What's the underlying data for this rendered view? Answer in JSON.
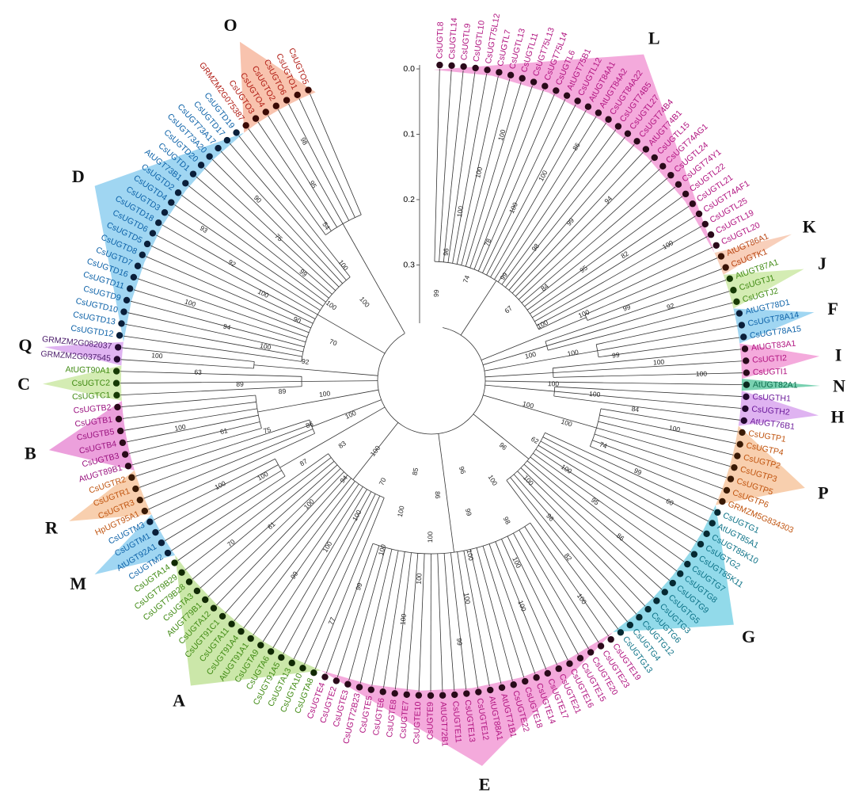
{
  "scale": {
    "ticks": [
      {
        "value": 0,
        "label": "0.0"
      },
      0.1,
      0.2,
      0.3
    ]
  },
  "groups": [
    {
      "name": "L",
      "color": "#f29bd6",
      "text_color": "#b0127f",
      "dot_color": "#2a0a1a",
      "leaves": [
        "CsUGTL8",
        "CsUGTL14",
        "CsUGTL9",
        "CsUGTL10",
        "CsUGT75L12",
        "CsUGTL7",
        "CsUGTL13",
        "CsUGTL11",
        "CsUGT75L13",
        "CsUGT75L14",
        "CsUGTL6",
        "AtUGT75B1",
        "CsUGTL12",
        "AtUGT84A1",
        "AtUGT84A2",
        "CsUGT84A22",
        "CsUGT74B5",
        "CsUGTL27",
        "CsUGT74B4",
        "AtUGT74B1",
        "CsUGTL15",
        "CsUGT74AG1",
        "CsUGTL24",
        "CsUGT74Y1",
        "CsUGTL22",
        "CsUGTL21",
        "CsUGT74AF1",
        "CsUGTL25",
        "CsUGTL19",
        "CsUGTL20"
      ]
    },
    {
      "name": "K",
      "color": "#f7c7ae",
      "text_color": "#b8420f",
      "dot_color": "#3a1205",
      "leaves": [
        "AtUGT86A1",
        "CsUGTK1"
      ]
    },
    {
      "name": "J",
      "color": "#cde9a6",
      "text_color": "#3f8a12",
      "dot_color": "#173a05",
      "leaves": [
        "AtUGT87A1",
        "CsUGTJ1",
        "CsUGTJ2"
      ]
    },
    {
      "name": "F",
      "color": "#8fcff0",
      "text_color": "#0d62a8",
      "dot_color": "#0a1f3a",
      "leaves": [
        "AtUGT78D1",
        "CsUGT78A14",
        "CsUGT78A15"
      ]
    },
    {
      "name": "I",
      "color": "#f29bd6",
      "text_color": "#b0127f",
      "dot_color": "#2a0a1a",
      "leaves": [
        "AtUGT83A1",
        "CsUGTI2",
        "CsUGTI1"
      ]
    },
    {
      "name": "N",
      "color": "#62c9a3",
      "text_color": "#0d6b4c",
      "dot_color": "#0a2a1f",
      "leaves": [
        "AtUGT82A1"
      ]
    },
    {
      "name": "H",
      "color": "#d9a6ef",
      "text_color": "#6b1a9a",
      "dot_color": "#22082e",
      "leaves": [
        "CsUGTH1",
        "CsUGTH2",
        "AtUGT76B1"
      ]
    },
    {
      "name": "P",
      "color": "#f7c7a0",
      "text_color": "#c0540f",
      "dot_color": "#3a1a05",
      "leaves": [
        "CsUGTP1",
        "CsUGTP4",
        "CsUGTP2",
        "CsUGTP3",
        "CsUGTP5",
        "CsUGTP6",
        "GRMZM5G834303"
      ]
    },
    {
      "name": "G",
      "color": "#7fd3e6",
      "text_color": "#0b7186",
      "dot_color": "#062a33",
      "leaves": [
        "CsUGTG1",
        "AtUGT85A1",
        "CsUGT85K10",
        "CsUGTG2",
        "CsUGT85K11",
        "CsUGTG7",
        "CsUGTG8",
        "CsUGTG9",
        "CsUGTG5",
        "CsUGTG3",
        "CsUGTG6",
        "CsUGTG12",
        "CsUGTG4",
        "CsUGTG13"
      ]
    },
    {
      "name": "E",
      "color": "#f29bd6",
      "text_color": "#b0127f",
      "dot_color": "#2a0a1a",
      "leaves": [
        "CsUGTE19",
        "CsUGTE23",
        "CsUGTE20",
        "CsUGTE15",
        "CsUGTE16",
        "CsUGTE21",
        "CsUGTE17",
        "CsUGTE14",
        "CsUGTE18",
        "CsUGTE22",
        "AtUGT71B1",
        "AtUGT88A1",
        "CsUGTE12",
        "CsUGTE13",
        "CsUGTE11",
        "AtUGT72B1",
        "CsUGTE9",
        "CsUGTE10",
        "CsUGTE7",
        "CsUGTE8",
        "CsUGTE6",
        "CsUGTE5",
        "CsUGT72B23",
        "CsUGTE3",
        "CsUGTE2",
        "CsUGTE4"
      ]
    },
    {
      "name": "A",
      "color": "#c2e39a",
      "text_color": "#3f8a12",
      "dot_color": "#112a05",
      "leaves": [
        "CsUGTA8",
        "CsUGTA10",
        "CsUGTA13",
        "CsUGT91A5",
        "CsUGTA6",
        "CsUGTA9",
        "AtUGT91A1",
        "CsUGT91A4",
        "CsUGTA11",
        "CsUGT91C1",
        "CsUGTA12",
        "AtUGT79B1",
        "CsUGTA3",
        "CsUGT79B28",
        "CsUGT79B29",
        "CsUGTA14"
      ]
    },
    {
      "name": "M",
      "color": "#8fcff0",
      "text_color": "#0d62a8",
      "dot_color": "#0a1f3a",
      "leaves": [
        "CsUGTM2",
        "AtUGT92A1",
        "CsUGTM1",
        "CsUGTM3"
      ]
    },
    {
      "name": "R",
      "color": "#f7c7a0",
      "text_color": "#c0540f",
      "dot_color": "#3a1a05",
      "leaves": [
        "HpUGT95A1",
        "CsUGTR3",
        "CsUGTR1",
        "CsUGTR2"
      ]
    },
    {
      "name": "B",
      "color": "#e98fd6",
      "text_color": "#9a127f",
      "dot_color": "#2a0a1a",
      "leaves": [
        "AtUGT89B1",
        "CsUGTB3",
        "CsUGTB4",
        "CsUGTB5",
        "CsUGTB1",
        "CsUGTB2"
      ]
    },
    {
      "name": "C",
      "color": "#cde9a6",
      "text_color": "#3f8a12",
      "dot_color": "#173a05",
      "leaves": [
        "CsUGTC1",
        "CsUGTC2",
        "AtUGT90A1"
      ]
    },
    {
      "name": "Q",
      "color": "#d9a6ef",
      "text_color": "#4a1a6a",
      "dot_color": "#22082e",
      "leaves": [
        "GRMZM2G037545",
        "GRMZM2G082037"
      ]
    },
    {
      "name": "D",
      "color": "#8fcff0",
      "text_color": "#0d62a8",
      "dot_color": "#0a1f3a",
      "leaves": [
        "CsUGTD12",
        "CsUGTD13",
        "CsUGTD10",
        "CsUGTD9",
        "CsUGTD11",
        "CsUGTD16",
        "CsUGTD7",
        "CsUGTD8",
        "CsUGTD5",
        "CsUGTD6",
        "CsUGTD18",
        "CsUGTD3",
        "CsUGTD4",
        "CsUGTD2",
        "AtUGT73B1",
        "CsUGTD1",
        "CsUGTD20",
        "CsUGT73A20",
        "CsUGT73A17",
        "CsUGTD17",
        "CsUGTD19"
      ]
    },
    {
      "name": "O",
      "color": "#f7b9a0",
      "text_color": "#b01a12",
      "dot_color": "#3a0a05",
      "leaves": [
        "GRMZM2G075387",
        "CsUGTO3",
        "CsUGTO4",
        "CsUGTO2",
        "CsUGTO6",
        "CsUGTO1",
        "CsUGTO5"
      ]
    }
  ],
  "bootstrap": [
    99,
    96,
    100,
    100,
    100,
    74,
    78,
    100,
    100,
    86,
    99,
    98,
    99,
    94,
    67,
    84,
    95,
    82,
    100,
    100,
    100,
    99,
    92,
    100,
    100,
    99,
    100,
    100,
    100,
    100,
    84,
    100,
    100,
    100,
    74,
    99,
    60,
    62,
    100,
    95,
    86,
    96,
    100,
    96,
    82,
    100,
    100,
    98,
    100,
    100,
    96,
    99,
    100,
    100,
    99,
    86,
    100,
    100,
    100,
    85,
    100,
    100,
    99,
    77,
    70,
    100,
    100,
    99,
    100,
    94,
    100,
    61,
    70,
    83,
    87,
    100,
    100,
    100,
    86,
    75,
    61,
    100,
    100,
    89,
    89,
    63,
    100,
    92,
    100,
    94,
    100,
    70,
    90,
    100,
    92,
    93,
    100,
    99,
    75,
    90,
    100,
    100,
    54,
    95,
    98
  ]
}
